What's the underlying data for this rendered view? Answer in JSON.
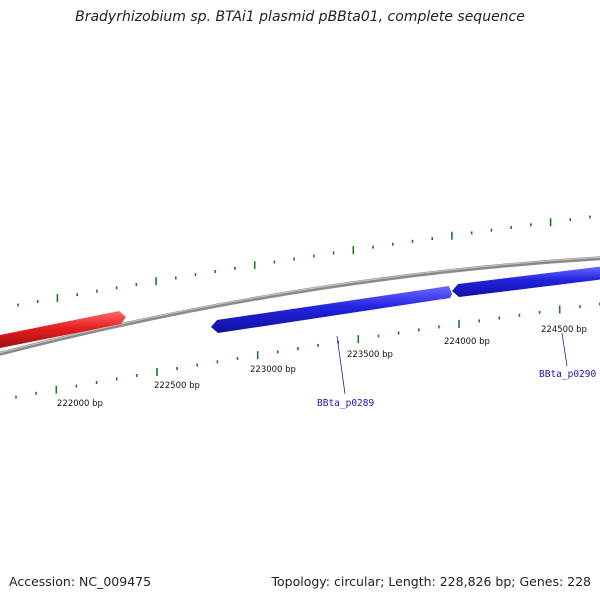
{
  "title": "Bradyrhizobium sp. BTAi1 plasmid pBBta01, complete sequence",
  "scale_labels": [
    "222000 bp",
    "222500 bp",
    "223000 bp",
    "223500 bp",
    "224000 bp",
    "224500 bp"
  ],
  "genes": [
    {
      "label": "BBta_p0289",
      "color": "#2020d8"
    },
    {
      "label": "BBta_p0290",
      "color": "#2020d8"
    }
  ],
  "other_feature_color": "#e61e1e",
  "backbone_color": "#888888",
  "tick_color": "#1f7a1f",
  "footer": {
    "accession": "Accession: NC_009475",
    "summary": "Topology: circular; Length: 228,826 bp; Genes: 228"
  }
}
